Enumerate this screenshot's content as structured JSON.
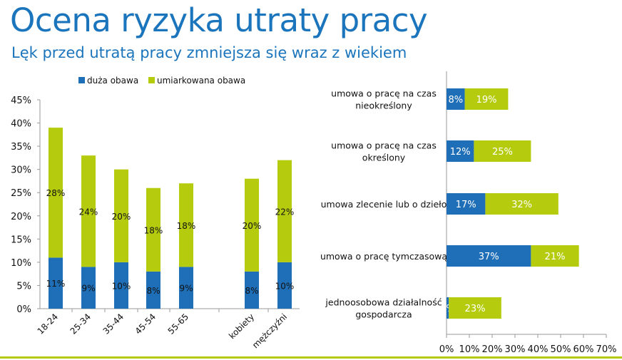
{
  "title": "Ocena ryzyka utraty pracy",
  "subtitle": "Lęk przed utratą pracy zmniejsza się wraz z wiekiem",
  "colors": {
    "duza": "#1f6fb8",
    "umiarkowana": "#b5cc0e",
    "title": "#1b75bc"
  },
  "chart_data": [
    {
      "type": "bar",
      "stacked": true,
      "orientation": "vertical",
      "legend": [
        "duża obawa",
        "umiarkowana obawa"
      ],
      "legend_position": "top",
      "categories": [
        "18-24",
        "25-34",
        "35-44",
        "45-54",
        "55-65",
        "kobiety",
        "mężczyźni"
      ],
      "series": [
        {
          "name": "duża obawa",
          "values": [
            11,
            9,
            10,
            8,
            9,
            8,
            10
          ],
          "labels": [
            "11%",
            "9%",
            "10%",
            "8%",
            "9%",
            "8%",
            "10%"
          ]
        },
        {
          "name": "umiarkowana obawa",
          "values": [
            28,
            24,
            20,
            18,
            18,
            20,
            22
          ],
          "labels": [
            "28%",
            "24%",
            "20%",
            "18%",
            "18%",
            "20%",
            "22%"
          ]
        }
      ],
      "ylim": [
        0,
        45
      ],
      "yticks": [
        "0%",
        "5%",
        "10%",
        "15%",
        "20%",
        "25%",
        "30%",
        "35%",
        "40%",
        "45%"
      ]
    },
    {
      "type": "bar",
      "stacked": true,
      "orientation": "horizontal",
      "categories": [
        [
          "umowa o pracę na czas",
          "nieokreślony"
        ],
        [
          "umowa o pracę na czas",
          "określony"
        ],
        [
          "umowa zlecenie lub o dzieło"
        ],
        [
          "umowa o pracę tymczasową"
        ],
        [
          "jednoosobowa działalność",
          "gospodarcza"
        ]
      ],
      "series": [
        {
          "name": "duża obawa",
          "values": [
            8,
            12,
            17,
            37,
            1
          ],
          "labels": [
            "8%",
            "12%",
            "17%",
            "37%",
            "1%"
          ]
        },
        {
          "name": "umiarkowana obawa",
          "values": [
            19,
            25,
            32,
            21,
            23
          ],
          "labels": [
            "19%",
            "25%",
            "32%",
            "21%",
            "23%"
          ]
        }
      ],
      "xlim": [
        0,
        70
      ],
      "xticks": [
        "0%",
        "10%",
        "20%",
        "30%",
        "40%",
        "50%",
        "60%",
        "70%"
      ]
    }
  ]
}
